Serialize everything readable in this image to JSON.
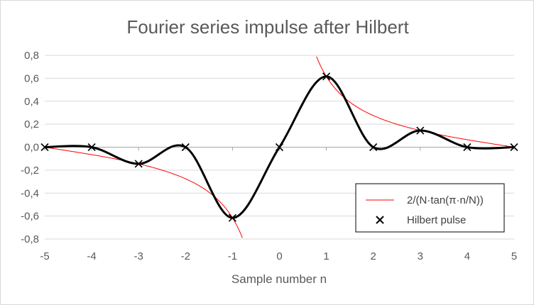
{
  "chart_data": {
    "type": "scatter",
    "title": "Fourier series impulse after Hilbert",
    "xlabel": "Sample number n",
    "ylabel": "",
    "xlim": [
      -5,
      5
    ],
    "ylim": [
      -0.8,
      0.8
    ],
    "x_ticks": [
      -5,
      -4,
      -3,
      -2,
      -1,
      0,
      1,
      2,
      3,
      4,
      5
    ],
    "x_tick_labels": [
      "-5",
      "-4",
      "-3",
      "-2",
      "-1",
      "0",
      "1",
      "2",
      "3",
      "4",
      "5"
    ],
    "y_ticks": [
      0.8,
      0.6,
      0.4,
      0.2,
      0.0,
      -0.2,
      -0.4,
      -0.6,
      -0.8
    ],
    "y_tick_labels": [
      "0,8",
      "0,6",
      "0,4",
      "0,2",
      "0,0",
      "-0,2",
      "-0,4",
      "-0,6",
      "-0,8"
    ],
    "grid": true,
    "legend_position": "bottom-right",
    "N": 10,
    "series": [
      {
        "name": "2/(N·tan(π·n/N))",
        "kind": "line",
        "color": "#ff0000",
        "formula": "2/(N*tan(pi*n/N))"
      },
      {
        "name": "Hilbert pulse",
        "kind": "markers",
        "marker": "x",
        "color": "#000000",
        "x": [
          -5,
          -4,
          -3,
          -2,
          -1,
          0,
          1,
          2,
          3,
          4,
          5
        ],
        "y": [
          0.0,
          0.0,
          -0.145,
          0.0,
          -0.616,
          0.0,
          0.616,
          0.0,
          0.145,
          0.0,
          0.0
        ]
      },
      {
        "kind": "smooth-curve",
        "color": "#000000",
        "x": [
          -5,
          -4,
          -3,
          -2,
          -1,
          0,
          1,
          2,
          3,
          4,
          5
        ],
        "y": [
          0.0,
          0.0,
          -0.145,
          0.0,
          -0.616,
          0.0,
          0.616,
          0.0,
          0.145,
          0.0,
          0.0
        ]
      }
    ]
  }
}
